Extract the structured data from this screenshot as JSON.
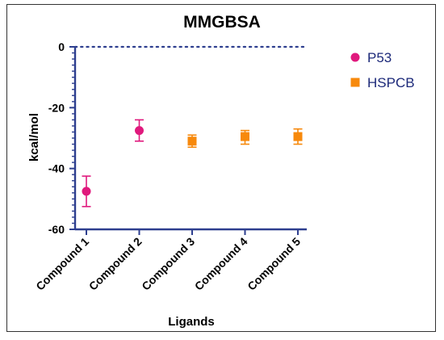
{
  "chart_data": {
    "type": "scatter",
    "title": "MMGBSA",
    "xlabel": "Ligands",
    "ylabel": "kcal/mol",
    "categories": [
      "Compound 1",
      "Compound 2",
      "Compound 3",
      "Compound 4",
      "Compound 5"
    ],
    "ylim": [
      -60,
      0
    ],
    "yticks": [
      0,
      -20,
      -40,
      -60
    ],
    "zero_line": "dotted",
    "legend_position": "right",
    "series": [
      {
        "name": "P53",
        "marker": "circle",
        "color": "#e0197d",
        "points": [
          {
            "category": "Compound 1",
            "y": -47.5,
            "err_low": -52.5,
            "err_high": -42.5
          },
          {
            "category": "Compound 2",
            "y": -27.5,
            "err_low": -31.0,
            "err_high": -24.0
          }
        ]
      },
      {
        "name": "HSPCB",
        "marker": "square",
        "color": "#f7890c",
        "points": [
          {
            "category": "Compound 3",
            "y": -31.0,
            "err_low": -33.0,
            "err_high": -29.0
          },
          {
            "category": "Compound 4",
            "y": -29.5,
            "err_low": -32.0,
            "err_high": -27.5
          },
          {
            "category": "Compound 5",
            "y": -29.5,
            "err_low": -32.0,
            "err_high": -27.0
          }
        ]
      }
    ],
    "axis_color": "#2e3f8f",
    "zero_line_color": "#2e3f8f"
  }
}
